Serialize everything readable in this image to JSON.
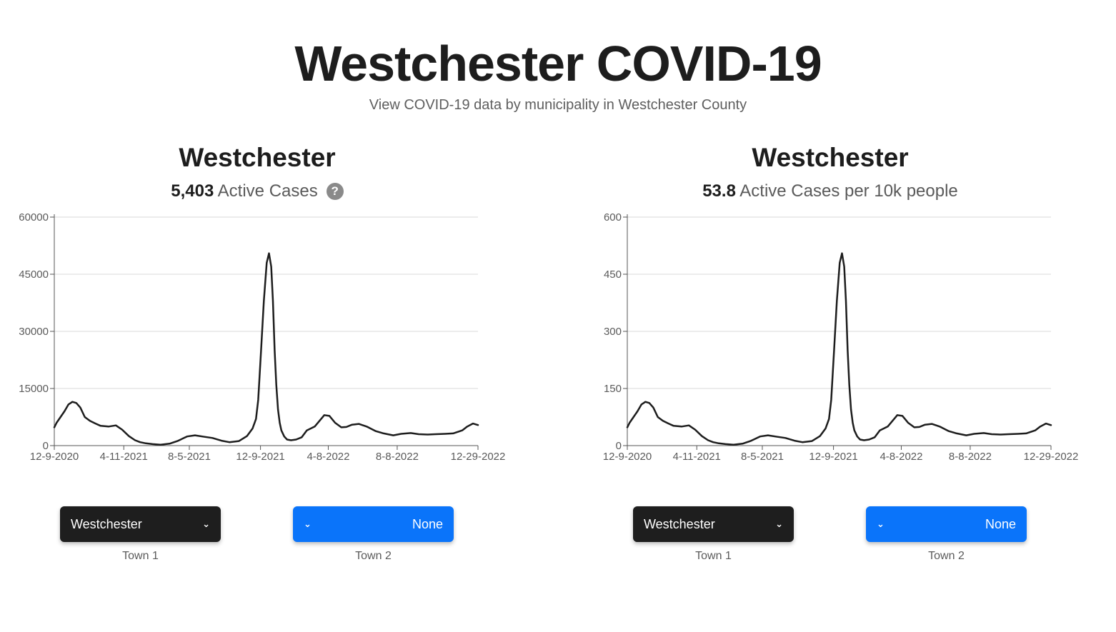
{
  "header": {
    "title": "Westchester COVID-19",
    "subtitle": "View COVID-19 data by municipality in Westchester County"
  },
  "colors": {
    "line": "#1d1d1d",
    "dark_select": "#1e1e1e",
    "blue_select": "#0a74fa",
    "help_icon": "#8a8a8a"
  },
  "panels": [
    {
      "title": "Westchester",
      "stat_value": "5,403",
      "stat_label": "Active Cases",
      "has_help": true,
      "help_icon": "question-icon",
      "town1": {
        "value": "Westchester",
        "label": "Town 1",
        "icon": "chevron-down-icon"
      },
      "town2": {
        "value": "None",
        "label": "Town 2",
        "icon": "chevron-down-icon"
      }
    },
    {
      "title": "Westchester",
      "stat_value": "53.8",
      "stat_label": "Active Cases per 10k people",
      "has_help": false,
      "town1": {
        "value": "Westchester",
        "label": "Town 1",
        "icon": "chevron-down-icon"
      },
      "town2": {
        "value": "None",
        "label": "Town 2",
        "icon": "chevron-down-icon"
      }
    }
  ],
  "chart_data": [
    {
      "type": "line",
      "title": "",
      "xlabel": "",
      "ylabel": "",
      "x_ticks": [
        "12-9-2020",
        "4-11-2021",
        "8-5-2021",
        "12-9-2021",
        "4-8-2022",
        "8-8-2022",
        "12-29-2022"
      ],
      "y_ticks": [
        0,
        15000,
        30000,
        45000,
        60000
      ],
      "ylim": [
        0,
        60000
      ],
      "xlim": [
        "2020-12-09",
        "2022-12-29"
      ],
      "grid": true,
      "series": [
        {
          "x": [
            "2020-12-09",
            "2020-12-13",
            "2020-12-20",
            "2020-12-27",
            "2021-01-03",
            "2021-01-10",
            "2021-01-17",
            "2021-01-24",
            "2021-02-01",
            "2021-02-10",
            "2021-02-20",
            "2021-03-01",
            "2021-03-15",
            "2021-03-28",
            "2021-04-08",
            "2021-04-20",
            "2021-05-01",
            "2021-05-10",
            "2021-05-20",
            "2021-06-01",
            "2021-06-15",
            "2021-07-01",
            "2021-07-15",
            "2021-08-01",
            "2021-08-15",
            "2021-09-01",
            "2021-09-15",
            "2021-10-01",
            "2021-10-15",
            "2021-11-01",
            "2021-11-15",
            "2021-11-25",
            "2021-12-01",
            "2021-12-05",
            "2021-12-10",
            "2021-12-15",
            "2021-12-20",
            "2021-12-24",
            "2021-12-28",
            "2021-12-31",
            "2022-01-03",
            "2022-01-06",
            "2022-01-09",
            "2022-01-12",
            "2022-01-15",
            "2022-01-20",
            "2022-01-25",
            "2022-02-01",
            "2022-02-10",
            "2022-02-20",
            "2022-03-01",
            "2022-03-15",
            "2022-04-01",
            "2022-04-10",
            "2022-04-20",
            "2022-05-01",
            "2022-05-10",
            "2022-05-20",
            "2022-06-01",
            "2022-06-15",
            "2022-07-01",
            "2022-07-15",
            "2022-08-01",
            "2022-08-15",
            "2022-09-01",
            "2022-09-15",
            "2022-10-01",
            "2022-10-15",
            "2022-11-01",
            "2022-11-15",
            "2022-12-01",
            "2022-12-10",
            "2022-12-20",
            "2022-12-29"
          ],
          "values": [
            4800,
            6000,
            7500,
            9000,
            10800,
            11500,
            11200,
            10000,
            7500,
            6500,
            5800,
            5200,
            5000,
            5300,
            4200,
            2500,
            1400,
            900,
            600,
            400,
            250,
            500,
            1200,
            2400,
            2700,
            2300,
            2000,
            1300,
            900,
            1200,
            2500,
            4500,
            7000,
            12000,
            25000,
            38000,
            48000,
            50500,
            47000,
            38000,
            25000,
            16000,
            9500,
            6000,
            4000,
            2400,
            1600,
            1400,
            1600,
            2200,
            4000,
            5000,
            8000,
            7800,
            6000,
            4800,
            4900,
            5500,
            5700,
            5000,
            3800,
            3200,
            2700,
            3100,
            3300,
            3000,
            2900,
            3000,
            3100,
            3200,
            4000,
            5000,
            5800,
            5403
          ]
        }
      ]
    },
    {
      "type": "line",
      "title": "",
      "xlabel": "",
      "ylabel": "",
      "x_ticks": [
        "12-9-2020",
        "4-11-2021",
        "8-5-2021",
        "12-9-2021",
        "4-8-2022",
        "8-8-2022",
        "12-29-2022"
      ],
      "y_ticks": [
        0,
        150,
        300,
        450,
        600
      ],
      "ylim": [
        0,
        600
      ],
      "xlim": [
        "2020-12-09",
        "2022-12-29"
      ],
      "grid": true,
      "series": [
        {
          "x": [
            "2020-12-09",
            "2020-12-13",
            "2020-12-20",
            "2020-12-27",
            "2021-01-03",
            "2021-01-10",
            "2021-01-17",
            "2021-01-24",
            "2021-02-01",
            "2021-02-10",
            "2021-02-20",
            "2021-03-01",
            "2021-03-15",
            "2021-03-28",
            "2021-04-08",
            "2021-04-20",
            "2021-05-01",
            "2021-05-10",
            "2021-05-20",
            "2021-06-01",
            "2021-06-15",
            "2021-07-01",
            "2021-07-15",
            "2021-08-01",
            "2021-08-15",
            "2021-09-01",
            "2021-09-15",
            "2021-10-01",
            "2021-10-15",
            "2021-11-01",
            "2021-11-15",
            "2021-11-25",
            "2021-12-01",
            "2021-12-05",
            "2021-12-10",
            "2021-12-15",
            "2021-12-20",
            "2021-12-24",
            "2021-12-28",
            "2021-12-31",
            "2022-01-03",
            "2022-01-06",
            "2022-01-09",
            "2022-01-12",
            "2022-01-15",
            "2022-01-20",
            "2022-01-25",
            "2022-02-01",
            "2022-02-10",
            "2022-02-20",
            "2022-03-01",
            "2022-03-15",
            "2022-04-01",
            "2022-04-10",
            "2022-04-20",
            "2022-05-01",
            "2022-05-10",
            "2022-05-20",
            "2022-06-01",
            "2022-06-15",
            "2022-07-01",
            "2022-07-15",
            "2022-08-01",
            "2022-08-15",
            "2022-09-01",
            "2022-09-15",
            "2022-10-01",
            "2022-10-15",
            "2022-11-01",
            "2022-11-15",
            "2022-12-01",
            "2022-12-10",
            "2022-12-20",
            "2022-12-29"
          ],
          "values": [
            48,
            60,
            75,
            90,
            108,
            115,
            112,
            100,
            75,
            65,
            58,
            52,
            50,
            53,
            42,
            25,
            14,
            9,
            6,
            4,
            2.5,
            5,
            12,
            24,
            27,
            23,
            20,
            13,
            9,
            12,
            25,
            45,
            70,
            120,
            250,
            380,
            480,
            505,
            470,
            380,
            250,
            160,
            95,
            60,
            40,
            24,
            16,
            14,
            16,
            22,
            40,
            50,
            80,
            78,
            60,
            48,
            49,
            55,
            57,
            50,
            38,
            32,
            27,
            31,
            33,
            30,
            29,
            30,
            31,
            32,
            40,
            50,
            58,
            53.8
          ]
        }
      ]
    }
  ]
}
